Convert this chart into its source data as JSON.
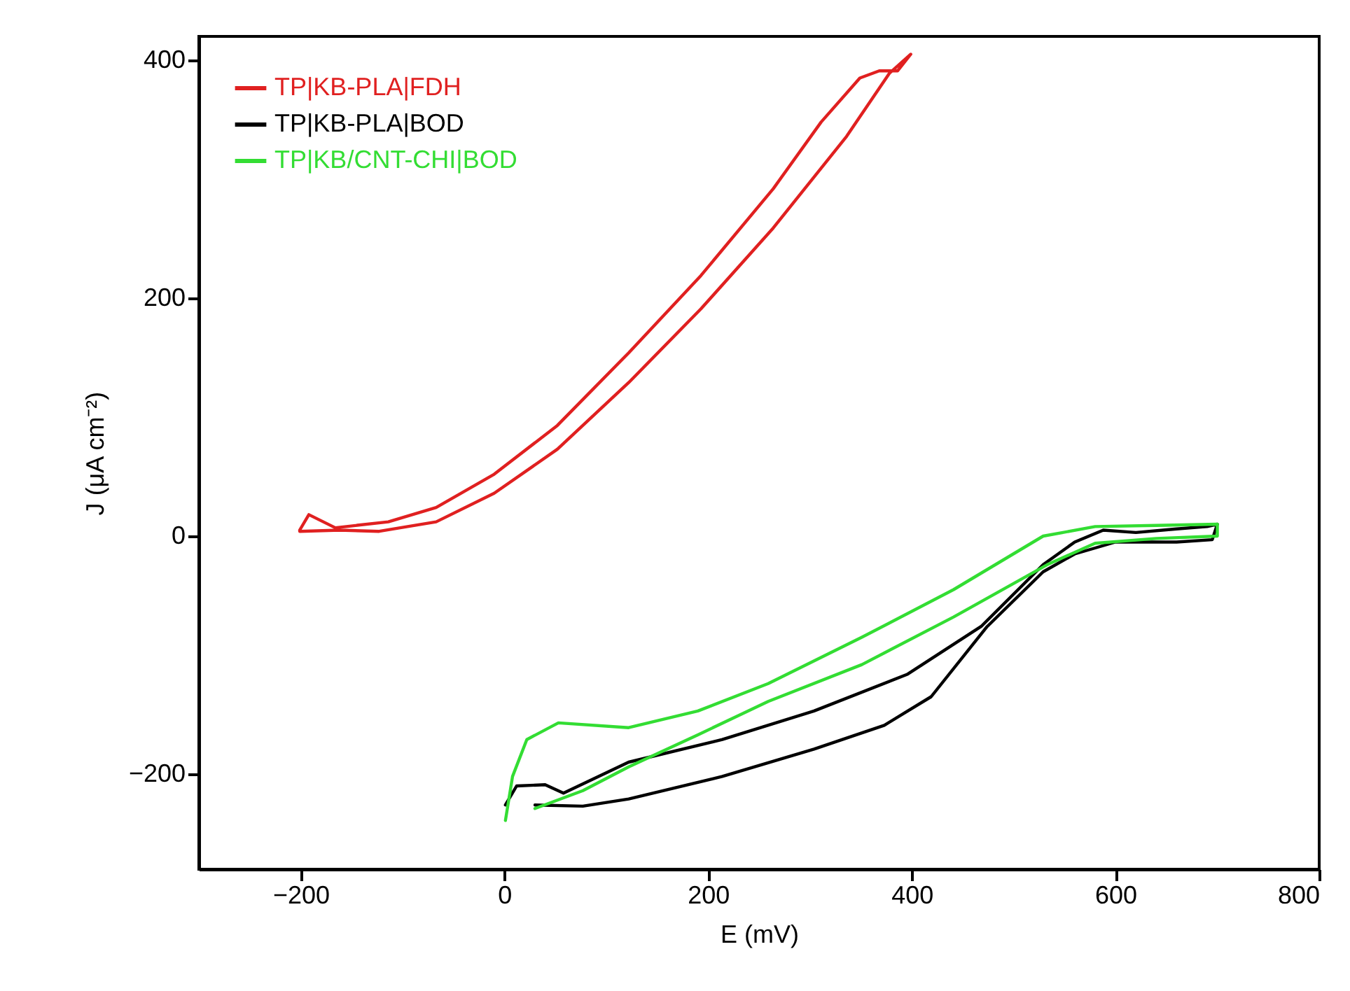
{
  "chart_data": {
    "type": "line",
    "xlabel": "E (mV)",
    "ylabel": "J (μA cm⁻²)",
    "xlim": [
      -300,
      800
    ],
    "ylim": [
      -280,
      420
    ],
    "xticks": [
      -200,
      0,
      200,
      400,
      600,
      800
    ],
    "yticks": [
      -200,
      0,
      200,
      400
    ],
    "grid": false,
    "legend": "top left",
    "series": [
      {
        "name": "TP|KB-PLA|FDH",
        "color": "#e02020",
        "x": [
          -201,
          -162,
          -123,
          -67,
          -10,
          52,
          122,
          193,
          264,
          336,
          378,
          399,
          386,
          368,
          349,
          311,
          264,
          193,
          122,
          52,
          -10,
          -67,
          -114,
          -166,
          -192,
          -201
        ],
        "values": [
          4,
          5,
          4,
          12,
          36,
          73,
          129,
          191,
          259,
          336,
          389,
          405,
          391,
          391,
          385,
          348,
          292,
          219,
          154,
          93,
          52,
          24,
          12,
          7,
          18,
          5
        ]
      },
      {
        "name": "TP|KB-PLA|BOD",
        "color": "#000000",
        "x": [
          1,
          12,
          40,
          58,
          122,
          214,
          304,
          396,
          468,
          529,
          560,
          588,
          620,
          660,
          690,
          700,
          695,
          660,
          600,
          560,
          529,
          474,
          419,
          373,
          304,
          214,
          122,
          77,
          30
        ],
        "values": [
          -226,
          -210,
          -209,
          -216,
          -190,
          -171,
          -147,
          -116,
          -76,
          -24,
          -5,
          5,
          3,
          6,
          8,
          10,
          -3,
          -5,
          -5,
          -15,
          -30,
          -76,
          -135,
          -159,
          -179,
          -202,
          -221,
          -227,
          -226
        ]
      },
      {
        "name": "TP|KB/CNT-CHI|BOD",
        "color": "#33dd33",
        "x": [
          1,
          8,
          22,
          53,
          122,
          190,
          259,
          351,
          441,
          529,
          580,
          640,
          700,
          700,
          640,
          580,
          533,
          441,
          351,
          259,
          190,
          122,
          77,
          30
        ],
        "values": [
          -239,
          -202,
          -171,
          -157,
          -161,
          -147,
          -124,
          -85,
          -45,
          0,
          8,
          9,
          10,
          0,
          -2,
          -6,
          -24,
          -68,
          -108,
          -139,
          -167,
          -194,
          -214,
          -229
        ]
      }
    ]
  }
}
